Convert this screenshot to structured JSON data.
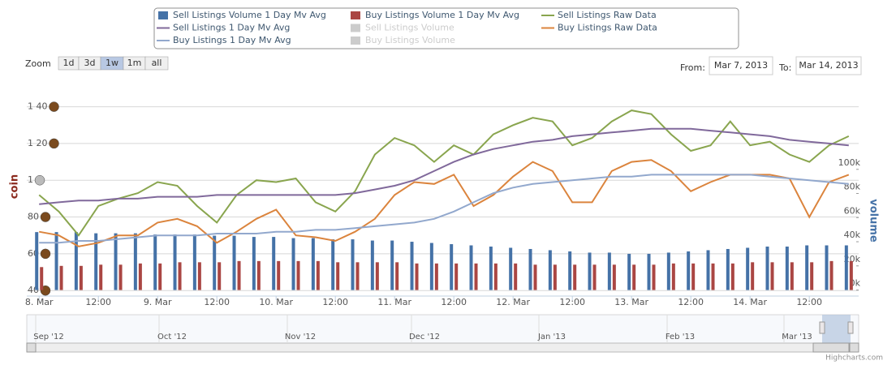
{
  "chart_data": {
    "type": "stock",
    "legend": {
      "position": "top"
    },
    "range_selector": {
      "label": "Zoom",
      "buttons": [
        "1d",
        "3d",
        "1w",
        "1m",
        "all"
      ],
      "selected": 2
    },
    "date_inputs": {
      "from_label": "From:",
      "from": "Mar 7, 2013",
      "to_label": "To:",
      "to": "Mar 14, 2013"
    },
    "ylabel": "coin",
    "y2label": "volume",
    "grid": true,
    "xlim": [
      -2.5,
      166
    ],
    "xticks": [
      {
        "value": 0,
        "label": "8. Mar"
      },
      {
        "value": 12,
        "label": "12:00"
      },
      {
        "value": 24,
        "label": "9. Mar"
      },
      {
        "value": 36,
        "label": "12:00"
      },
      {
        "value": 48,
        "label": "10. Mar"
      },
      {
        "value": 60,
        "label": "12:00"
      },
      {
        "value": 72,
        "label": "11. Mar"
      },
      {
        "value": 84,
        "label": "12:00"
      },
      {
        "value": 96,
        "label": "12. Mar"
      },
      {
        "value": 108,
        "label": "12:00"
      },
      {
        "value": 120,
        "label": "13. Mar"
      },
      {
        "value": 132,
        "label": "12:00"
      },
      {
        "value": 144,
        "label": "14. Mar"
      },
      {
        "value": 156,
        "label": "12:00"
      }
    ],
    "ylim": [
      37,
      146
    ],
    "yticks": [
      {
        "value": 140,
        "label": "1 40"
      },
      {
        "value": 120,
        "label": "1 20"
      },
      {
        "value": 100,
        "label": "1"
      },
      80,
      60,
      40
    ],
    "y2lim": [
      -5000,
      161000
    ],
    "y2ticks": [
      {
        "value": 100000,
        "label": "100k"
      },
      {
        "value": 80000,
        "label": "80k"
      },
      {
        "value": 60000,
        "label": "60k"
      },
      {
        "value": 40000,
        "label": "40k"
      },
      {
        "value": 20000,
        "label": "20k"
      },
      {
        "value": 0,
        "label": "0k"
      }
    ],
    "x": [
      0,
      4,
      8,
      12,
      16,
      20,
      24,
      28,
      32,
      36,
      40,
      44,
      48,
      52,
      56,
      60,
      64,
      68,
      72,
      76,
      80,
      84,
      88,
      92,
      96,
      100,
      104,
      108,
      112,
      116,
      120,
      124,
      128,
      132,
      136,
      140,
      144,
      148,
      152,
      156,
      160,
      164
    ],
    "series": [
      {
        "name": "Sell Listings Volume 1 Day Mv Avg",
        "type": "column",
        "axis": "y2",
        "color": "#4572A7",
        "visible": true,
        "values": [
          48000,
          48000,
          48000,
          47000,
          47000,
          47000,
          46000,
          46000,
          46000,
          45000,
          45000,
          44000,
          44000,
          43000,
          43000,
          42000,
          42000,
          41000,
          41000,
          40000,
          39000,
          38000,
          37000,
          36000,
          35000,
          34000,
          33000,
          32000,
          31000,
          31000,
          30000,
          30000,
          31000,
          32000,
          33000,
          34000,
          35000,
          36000,
          36000,
          37000,
          37000,
          37000
        ]
      },
      {
        "name": "Buy Listings Volume 1 Day Mv Avg",
        "type": "column",
        "axis": "y2",
        "color": "#AA4643",
        "visible": true,
        "values": [
          19000,
          20000,
          20000,
          21000,
          21000,
          22000,
          22000,
          23000,
          23000,
          23000,
          24000,
          24000,
          24000,
          24000,
          24000,
          23000,
          23000,
          23000,
          23000,
          22000,
          22000,
          22000,
          22000,
          22000,
          22000,
          21000,
          21000,
          21000,
          21000,
          21000,
          21000,
          21000,
          22000,
          22000,
          22000,
          22000,
          23000,
          23000,
          23000,
          23000,
          24000,
          24000
        ]
      },
      {
        "name": "Sell Listings Raw Data",
        "type": "line",
        "color": "#89A54E",
        "visible": true,
        "values": [
          92,
          83,
          70,
          86,
          90,
          93,
          99,
          97,
          86,
          77,
          92,
          100,
          99,
          101,
          88,
          83,
          94,
          114,
          123,
          119,
          110,
          119,
          114,
          125,
          130,
          134,
          132,
          119,
          123,
          132,
          138,
          136,
          125,
          116,
          119,
          132,
          119,
          121,
          114,
          110,
          119,
          124
        ]
      },
      {
        "name": "Sell Listings 1 Day Mv Avg",
        "type": "line",
        "color": "#80699B",
        "visible": true,
        "values": [
          87,
          88,
          89,
          89,
          90,
          90,
          91,
          91,
          91,
          92,
          92,
          92,
          92,
          92,
          92,
          92,
          93,
          95,
          97,
          100,
          105,
          110,
          114,
          117,
          119,
          121,
          122,
          124,
          125,
          126,
          127,
          128,
          128,
          128,
          127,
          126,
          125,
          124,
          122,
          121,
          120,
          119
        ]
      },
      {
        "name": "Sell Listings Volume",
        "type": "column",
        "axis": "y2",
        "color": "#CCCCCC",
        "visible": false
      },
      {
        "name": "Buy Listings Raw Data",
        "type": "line",
        "color": "#DB843D",
        "visible": true,
        "values": [
          72,
          70,
          64,
          66,
          70,
          70,
          77,
          79,
          75,
          66,
          72,
          79,
          84,
          70,
          69,
          67,
          72,
          79,
          92,
          99,
          98,
          103,
          86,
          92,
          102,
          110,
          105,
          88,
          88,
          105,
          110,
          111,
          105,
          94,
          99,
          103,
          103,
          103,
          101,
          80,
          99,
          103
        ]
      },
      {
        "name": "Buy Listings 1 Day Mv Avg",
        "type": "line",
        "color": "#92A8CD",
        "visible": true,
        "values": [
          66,
          66,
          67,
          67,
          68,
          69,
          70,
          70,
          70,
          71,
          71,
          71,
          72,
          72,
          73,
          73,
          74,
          75,
          76,
          77,
          79,
          83,
          88,
          93,
          96,
          98,
          99,
          100,
          101,
          102,
          102,
          103,
          103,
          103,
          103,
          103,
          103,
          102,
          101,
          100,
          99,
          98
        ]
      },
      {
        "name": "Buy Listings Volume",
        "type": "column",
        "axis": "y2",
        "color": "#CCCCCC",
        "visible": false
      }
    ],
    "navigator": {
      "labels": [
        "Sep '12",
        "Oct '12",
        "Nov '12",
        "Dec '12",
        "Jan '13",
        "Feb '13",
        "Mar '13"
      ]
    },
    "credits": "Highcharts.com"
  }
}
